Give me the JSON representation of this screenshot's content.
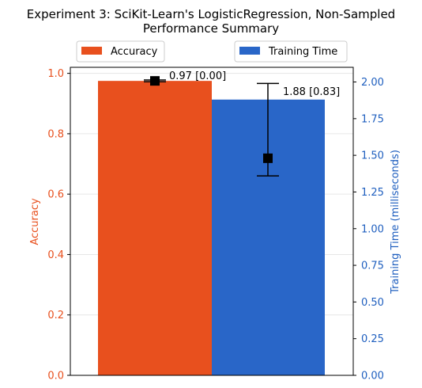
{
  "chart_data": {
    "type": "bar",
    "title_line1": "Experiment 3: SciKit-Learn's LogisticRegression, Non-Sampled",
    "title_line2": "Performance Summary",
    "series": [
      {
        "name": "Accuracy",
        "axis": "left",
        "value": 0.975,
        "point": 0.975,
        "error_low": 0.972,
        "error_high": 0.978,
        "label": "0.97 [0.00]",
        "color": "#e8501e"
      },
      {
        "name": "Training Time",
        "axis": "right",
        "value": 1.88,
        "point": 1.48,
        "error_low": 1.36,
        "error_high": 1.99,
        "label": "1.88 [0.83]",
        "color": "#2966c8"
      }
    ],
    "left_axis": {
      "label": "Accuracy",
      "color": "#e8501e",
      "ylim": [
        0,
        1.02
      ],
      "ticks": [
        0.0,
        0.2,
        0.4,
        0.6,
        0.8,
        1.0
      ],
      "tick_labels": [
        "0.0",
        "0.2",
        "0.4",
        "0.6",
        "0.8",
        "1.0"
      ]
    },
    "right_axis": {
      "label": "Training Time (milliseconds)",
      "color": "#1f5fbf",
      "ylim": [
        0,
        2.1
      ],
      "ticks": [
        0,
        0.25,
        0.5,
        0.75,
        1.0,
        1.25,
        1.5,
        1.75,
        2.0
      ],
      "tick_labels": [
        "0.00",
        "0.25",
        "0.50",
        "0.75",
        "1.00",
        "1.25",
        "1.50",
        "1.75",
        "2.00"
      ]
    },
    "grid": "horizontal",
    "legend": "above plot, split left and right"
  }
}
